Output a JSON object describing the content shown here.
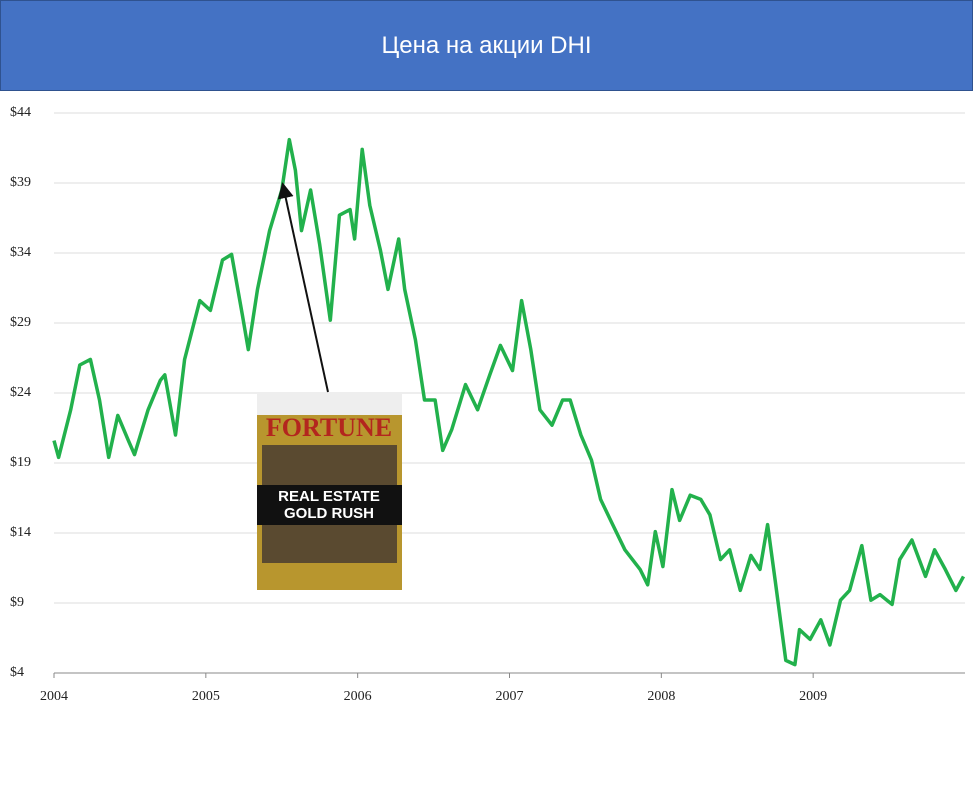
{
  "chart_data": {
    "type": "line",
    "title": "Цена на акции DHI",
    "x": [
      2004.0,
      2004.03,
      2004.11,
      2004.17,
      2004.24,
      2004.3,
      2004.36,
      2004.42,
      2004.49,
      2004.53,
      2004.62,
      2004.7,
      2004.73,
      2004.8,
      2004.86,
      2004.96,
      2005.03,
      2005.11,
      2005.17,
      2005.24,
      2005.28,
      2005.34,
      2005.42,
      2005.5,
      2005.55,
      2005.59,
      2005.63,
      2005.69,
      2005.75,
      2005.82,
      2005.88,
      2005.95,
      2005.98,
      2006.03,
      2006.08,
      2006.15,
      2006.2,
      2006.27,
      2006.31,
      2006.38,
      2006.44,
      2006.51,
      2006.56,
      2006.62,
      2006.71,
      2006.79,
      2006.87,
      2006.94,
      2007.02,
      2007.08,
      2007.14,
      2007.2,
      2007.28,
      2007.35,
      2007.4,
      2007.47,
      2007.54,
      2007.6,
      2007.68,
      2007.76,
      2007.86,
      2007.91,
      2007.96,
      2008.01,
      2008.07,
      2008.12,
      2008.19,
      2008.26,
      2008.32,
      2008.39,
      2008.45,
      2008.52,
      2008.59,
      2008.65,
      2008.7,
      2008.75,
      2008.82,
      2008.88,
      2008.91,
      2008.98,
      2009.05,
      2009.11,
      2009.18,
      2009.24,
      2009.32,
      2009.38,
      2009.44,
      2009.52,
      2009.57,
      2009.65,
      2009.74,
      2009.8,
      2009.87,
      2009.94,
      2009.99
    ],
    "series": [
      {
        "color": "#22b14c",
        "values": [
          20.6,
          19.4,
          22.8,
          26.0,
          26.4,
          23.5,
          19.4,
          22.4,
          20.6,
          19.6,
          22.8,
          24.9,
          25.3,
          21.0,
          26.4,
          30.6,
          29.9,
          33.5,
          33.9,
          29.6,
          27.1,
          31.4,
          35.6,
          38.5,
          42.1,
          39.9,
          35.6,
          38.5,
          34.6,
          29.2,
          36.7,
          37.1,
          35.0,
          41.4,
          37.4,
          34.2,
          31.4,
          35.0,
          31.4,
          27.8,
          23.5,
          23.5,
          19.9,
          21.4,
          24.6,
          22.8,
          25.3,
          27.4,
          25.6,
          30.6,
          27.1,
          22.8,
          21.7,
          23.5,
          23.5,
          21.0,
          19.2,
          16.4,
          14.6,
          12.8,
          11.4,
          10.3,
          14.1,
          11.6,
          17.1,
          14.9,
          16.7,
          16.4,
          15.3,
          12.1,
          12.8,
          9.9,
          12.4,
          11.4,
          14.6,
          10.6,
          4.9,
          4.6,
          7.1,
          6.4,
          7.8,
          6.0,
          9.2,
          9.9,
          13.1,
          9.2,
          9.6,
          8.9,
          12.1,
          13.5,
          10.9,
          12.8,
          11.4,
          9.9,
          10.9
        ]
      }
    ],
    "xlim": [
      2004,
      2010
    ],
    "xticks": [
      2004,
      2005,
      2006,
      2007,
      2008,
      2009
    ],
    "ylim": [
      4,
      44
    ],
    "yticks": [
      {
        "value": 4,
        "label": "$4"
      },
      {
        "value": 9,
        "label": "$9"
      },
      {
        "value": 14,
        "label": "$14"
      },
      {
        "value": 19,
        "label": "$19"
      },
      {
        "value": 24,
        "label": "$24"
      },
      {
        "value": 29,
        "label": "$29"
      },
      {
        "value": 34,
        "label": "$34"
      },
      {
        "value": 39,
        "label": "$39"
      },
      {
        "value": 44,
        "label": "$44"
      }
    ],
    "grid": true,
    "annotations": [
      "FORTUNE",
      "REAL ESTATE",
      "GOLD RUSH"
    ]
  }
}
